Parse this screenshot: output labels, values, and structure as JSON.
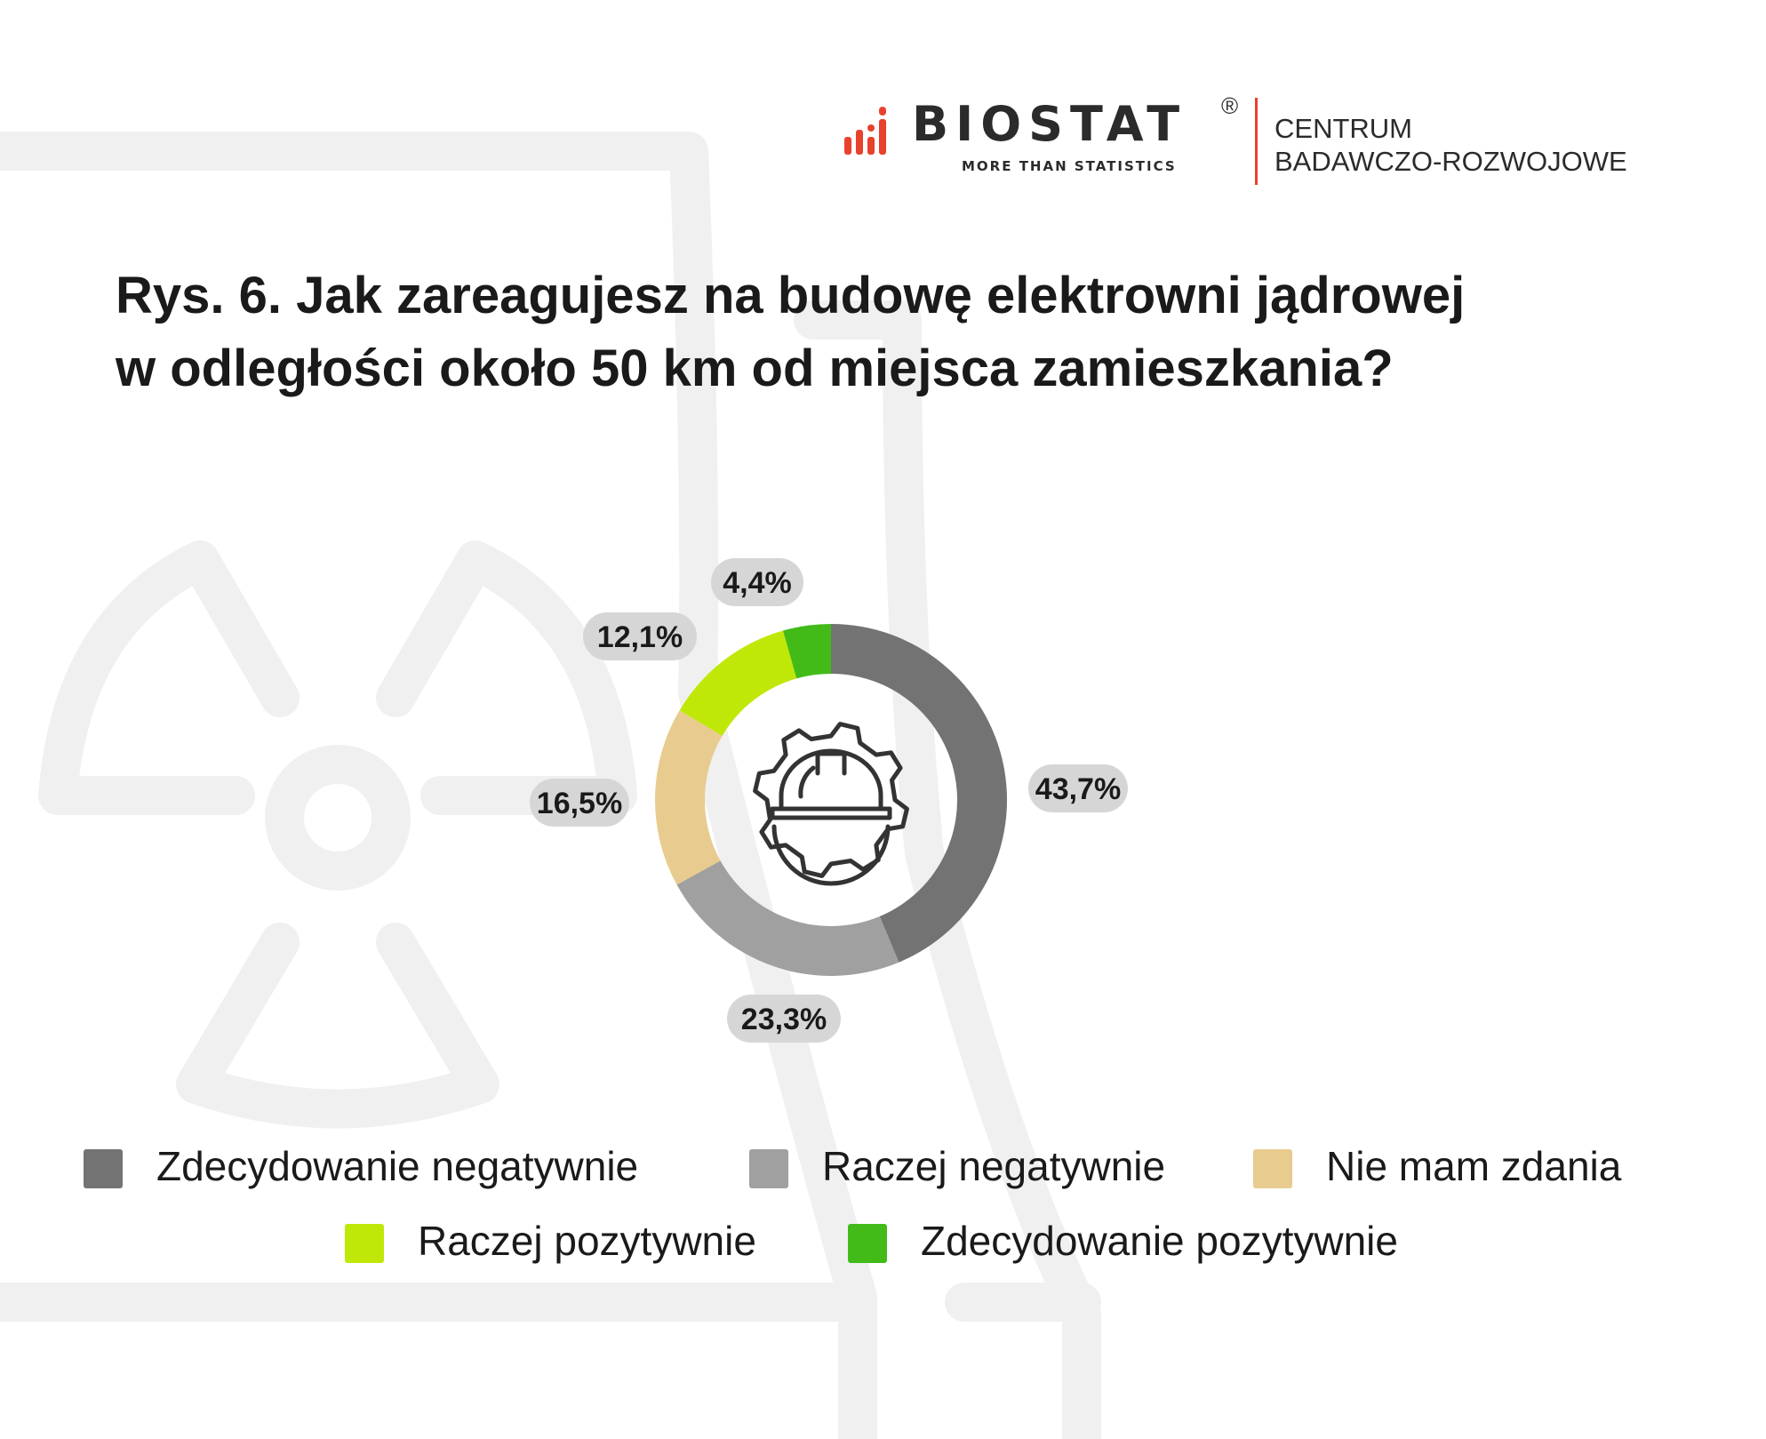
{
  "brand": {
    "name": "BIOSTAT",
    "registered_mark": "®",
    "tagline": "MORE THAN STATISTICS",
    "center_line1": "CENTRUM",
    "center_line2": "BADAWCZO-ROZWOJOWE",
    "accent_color": "#e8412c"
  },
  "title": {
    "line1": "Rys. 6. Jak zareagujesz na budowę elektrowni jądrowej",
    "line2": "w odległości około 50 km od miejsca zamieszkania?"
  },
  "center_icon": "hard-hat-gear-icon",
  "background_icons": [
    "radiation-symbol-icon",
    "cooling-tower-icon"
  ],
  "chart_data": {
    "type": "pie",
    "variant": "donut",
    "categories": [
      "Zdecydowanie negatywnie",
      "Raczej negatywnie",
      "Nie mam zdania",
      "Raczej pozytywnie",
      "Zdecydowanie pozytywnie"
    ],
    "values": [
      43.7,
      23.3,
      16.5,
      12.1,
      4.4
    ],
    "labels": [
      "43,7%",
      "23,3%",
      "16,5%",
      "12,1%",
      "4,4%"
    ],
    "colors": [
      "#737373",
      "#a0a0a0",
      "#e8cb8f",
      "#bfe808",
      "#42bb19"
    ],
    "start": "top, clockwise",
    "legend_position": "bottom"
  }
}
